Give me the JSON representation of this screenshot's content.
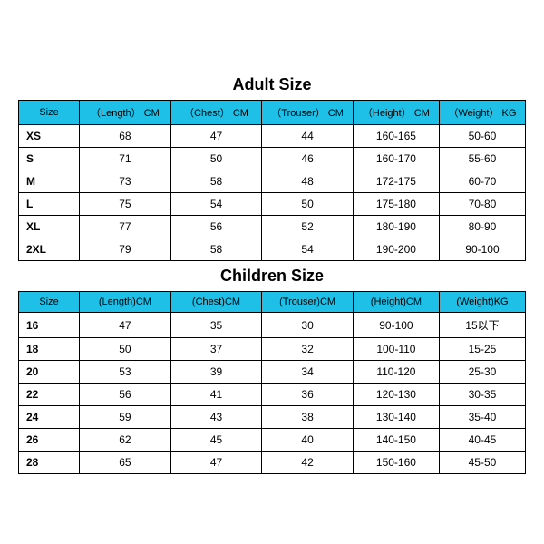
{
  "adult": {
    "title": "Adult Size",
    "header_bg": "#1fc0e8",
    "columns": [
      "Size",
      "（Length） CM",
      "（Chest） CM",
      "（Trouser） CM",
      "（Height） CM",
      "（Weight） KG"
    ],
    "col_widths": [
      "12%",
      "18%",
      "18%",
      "18%",
      "17%",
      "17%"
    ],
    "rows": [
      [
        "XS",
        "68",
        "47",
        "44",
        "160-165",
        "50-60"
      ],
      [
        "S",
        "71",
        "50",
        "46",
        "160-170",
        "55-60"
      ],
      [
        "M",
        "73",
        "58",
        "48",
        "172-175",
        "60-70"
      ],
      [
        "L",
        "75",
        "54",
        "50",
        "175-180",
        "70-80"
      ],
      [
        "XL",
        "77",
        "56",
        "52",
        "180-190",
        "80-90"
      ],
      [
        "2XL",
        "79",
        "58",
        "54",
        "190-200",
        "90-100"
      ]
    ]
  },
  "children": {
    "title": "Children Size",
    "header_bg": "#1fc0e8",
    "columns": [
      "Size",
      "(Length)CM",
      "(Chest)CM",
      "(Trouser)CM",
      "(Height)CM",
      "(Weight)KG"
    ],
    "col_widths": [
      "12%",
      "18%",
      "18%",
      "18%",
      "17%",
      "17%"
    ],
    "rows": [
      [
        "16",
        "47",
        "35",
        "30",
        "90-100",
        "15以下"
      ],
      [
        "18",
        "50",
        "37",
        "32",
        "100-110",
        "15-25"
      ],
      [
        "20",
        "53",
        "39",
        "34",
        "110-120",
        "25-30"
      ],
      [
        "22",
        "56",
        "41",
        "36",
        "120-130",
        "30-35"
      ],
      [
        "24",
        "59",
        "43",
        "38",
        "130-140",
        "35-40"
      ],
      [
        "26",
        "62",
        "45",
        "40",
        "140-150",
        "40-45"
      ],
      [
        "28",
        "65",
        "47",
        "42",
        "150-160",
        "45-50"
      ]
    ]
  }
}
